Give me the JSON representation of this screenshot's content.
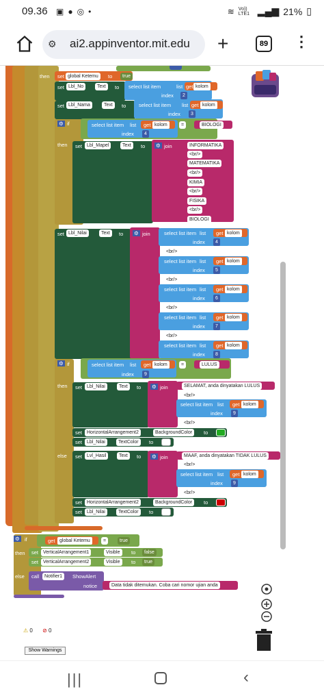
{
  "status": {
    "time": "09.36",
    "battery": "21%",
    "net": "Vo)) LTE1"
  },
  "browser": {
    "url": "ai2.appinventor.mit.edu",
    "tab_count": "89"
  },
  "blocks": {
    "then": "then",
    "else": "else",
    "if": "if",
    "set": "set",
    "to": "to",
    "get": "get",
    "join": "join",
    "call": "call",
    "notice": "notice",
    "index": "index",
    "eq": "=",
    "select_list_item": "select list item",
    "list": "list",
    "global_ketemu": "global Ketemu",
    "true": "true",
    "false": "false",
    "kolom": "kolom",
    "lbl_no": "Lbl_No",
    "lbl_nama": "Lbl_Nama",
    "lbl_mapel": "Lbl_Mapel",
    "lbl_nilai": "Lbl_Nilai",
    "lvl_hasil": "Lvl_Hasil",
    "text_prop": "Text",
    "biologi": "BIOLOGI",
    "informatika": "INFORMATIKA",
    "matematika": "MATEMATIKA",
    "kimia": "KIMIA",
    "fisika": "FISIKA",
    "br": "<br/>",
    "lulus": "LULUS",
    "selamat": "SELAMAT, anda dinyatakan LULUS",
    "maaf": "MAAF, anda dinyatakan TIDAK LULUS",
    "harr2": "HorizontalArrangement2",
    "bgcolor": "BackgroundColor",
    "textcolor": "TextColor",
    "varr1": "VerticalArrangement1",
    "varr2": "VerticalArrangement2",
    "visible": "Visible",
    "notifier": "Notifier1",
    "showalert": "ShowAlert",
    "notfound": "Data tidak ditemukan. Coba cari nomor ujian anda",
    "idx2": "2",
    "idx3": "3",
    "idx4": "4",
    "idx5": "5",
    "idx6": "6",
    "idx7": "7",
    "idx8": "8",
    "idx9": "9"
  },
  "warnings": {
    "warn_count": "0",
    "error_count": "0",
    "button": "Show Warnings"
  },
  "colors": {
    "procedure": "#e06a2a",
    "control": "#b3973a",
    "logic": "#6b8d3c",
    "list": "#4a9fe0",
    "text": "#b8296a",
    "setter": "#235a3a",
    "color_green": "#22aa22",
    "color_white": "#ffffff",
    "color_red": "#cc0000",
    "variable": "#e0672a",
    "component": "#7a5aa8"
  }
}
